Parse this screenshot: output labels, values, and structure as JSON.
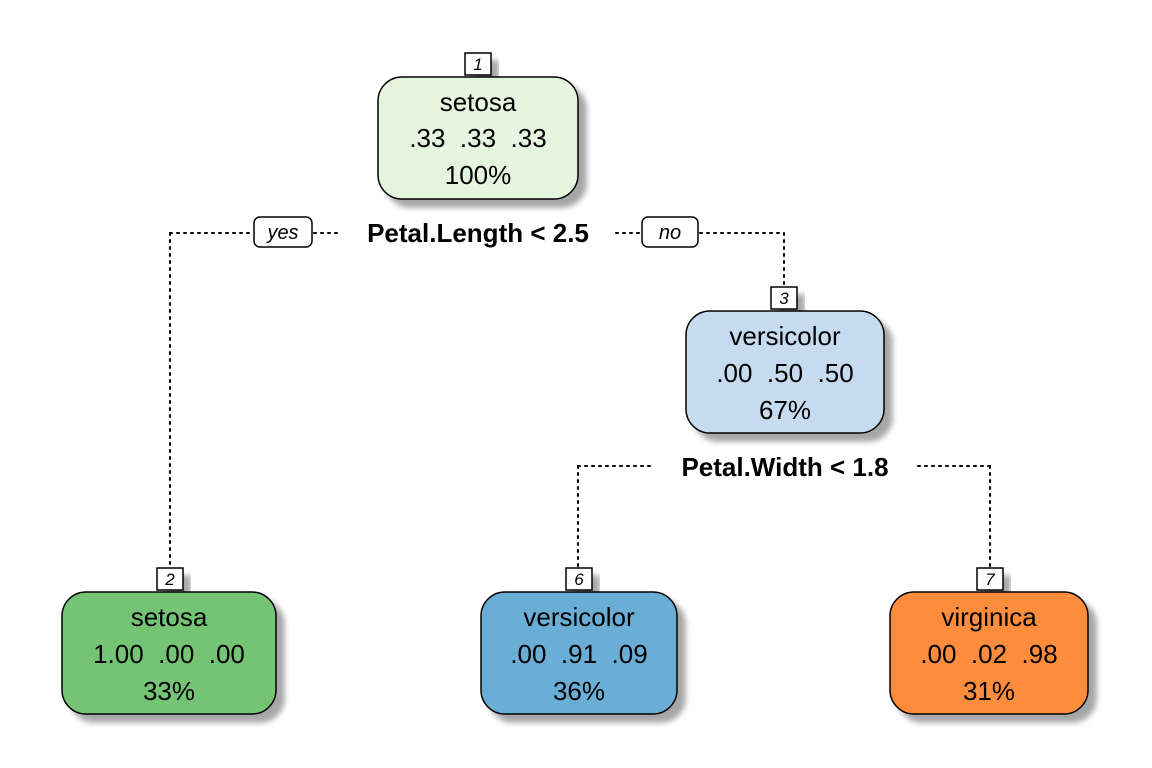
{
  "tree": {
    "root_split": {
      "label": "Petal.Length < 2.5",
      "yes_label": "yes",
      "no_label": "no"
    },
    "second_split": {
      "label": "Petal.Width < 1.8"
    },
    "nodes": [
      {
        "id": "1",
        "class": "setosa",
        "probs": ".33  .33  .33",
        "percent": "100%",
        "fill": "#e5f5e0"
      },
      {
        "id": "2",
        "class": "setosa",
        "probs": "1.00  .00  .00",
        "percent": "33%",
        "fill": "#74c476"
      },
      {
        "id": "3",
        "class": "versicolor",
        "probs": ".00  .50  .50",
        "percent": "67%",
        "fill": "#c6dbef"
      },
      {
        "id": "6",
        "class": "versicolor",
        "probs": ".00  .91  .09",
        "percent": "36%",
        "fill": "#6baed6"
      },
      {
        "id": "7",
        "class": "virginica",
        "probs": ".00  .02  .98",
        "percent": "31%",
        "fill": "#fd8d3c"
      }
    ]
  }
}
